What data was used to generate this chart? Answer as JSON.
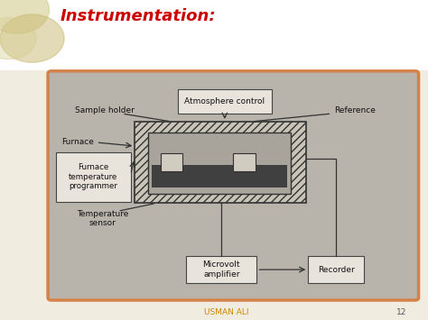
{
  "title": "Instrumentation:",
  "title_color": "#cc0000",
  "title_fontsize": 13,
  "bg_top_color": "#ffffff",
  "bg_bottom_color": "#f0ece0",
  "diagram_bg": "#b8b4ac",
  "diagram_border": "#d4824a",
  "footer_text": "USMAN ALI",
  "footer_page": "12",
  "footer_color": "#cc8800",
  "circle1_color": "#d4cc90",
  "circle2_color": "#c8b870",
  "box_face": "#e8e4dc",
  "box_edge": "#444444",
  "furnace_hatch_face": "#c8c4b8",
  "furnace_inner_face": "#a8a49c",
  "heater_face": "#404040",
  "cup_face": "#d0ccc0"
}
